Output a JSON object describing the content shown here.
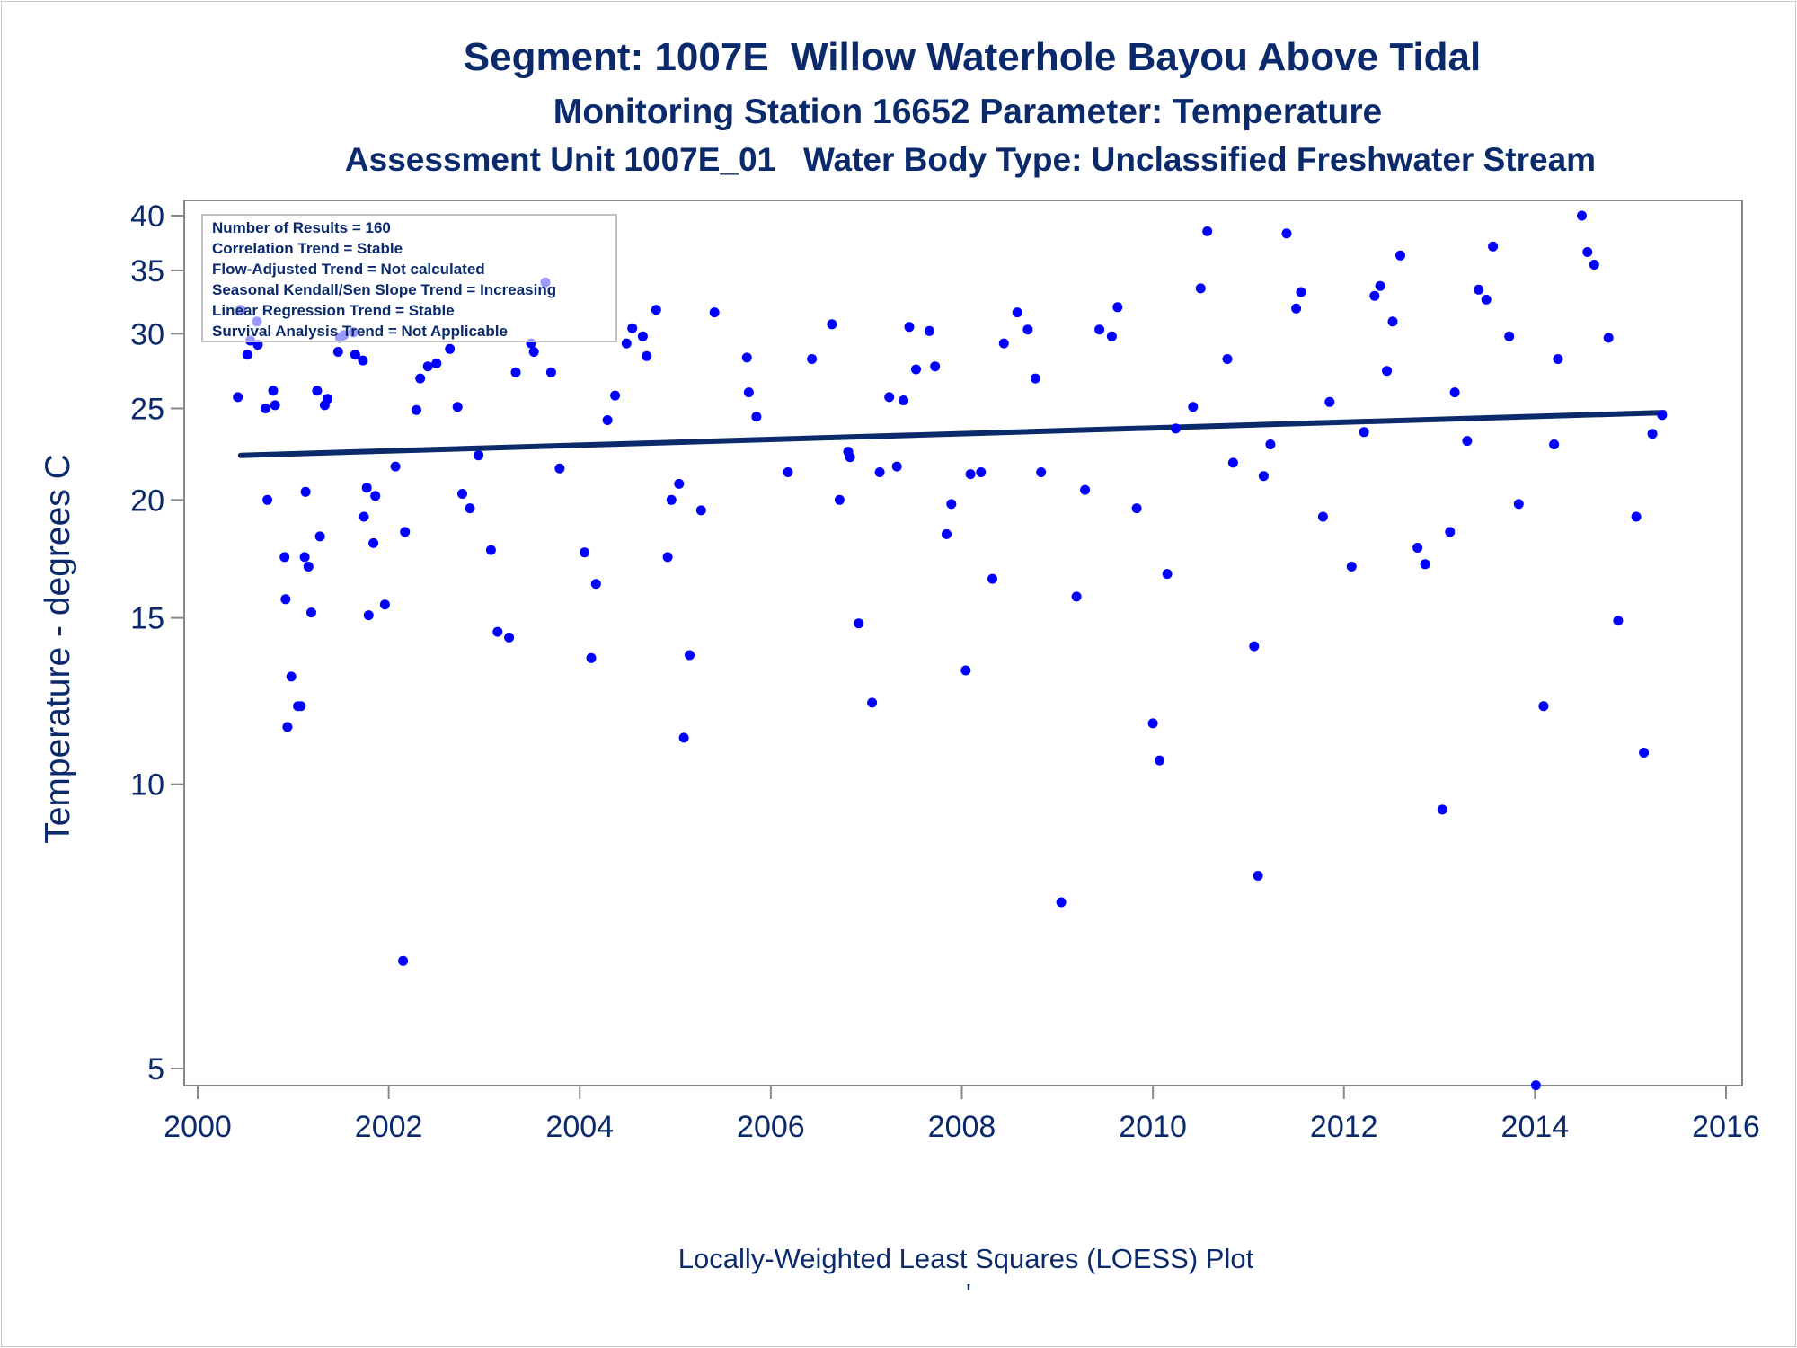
{
  "chart_data": {
    "type": "scatter",
    "title": "Segment: 1007E  Willow Waterhole Bayou Above Tidal",
    "subtitle": "Monitoring Station 16652 Parameter: Temperature",
    "subtitle2": "Assessment Unit 1007E_01   Water Body Type: Unclassified Freshwater Stream",
    "ylabel": "Temperature - degrees C",
    "footnote": "Locally-Weighted Least Squares (LOESS) Plot",
    "footnote_mark": "'",
    "x_scale": "linear",
    "y_scale": "log",
    "xlim": [
      2000,
      2016
    ],
    "ylim": [
      4.9,
      40.8
    ],
    "x_ticks": [
      2000,
      2002,
      2004,
      2006,
      2008,
      2010,
      2012,
      2014,
      2016
    ],
    "y_ticks": [
      5,
      10,
      15,
      20,
      25,
      30,
      35,
      40
    ],
    "grid": false,
    "legend_placement": "top-left",
    "stats_box": [
      "Number of Results = 160",
      "Correlation Trend = Stable",
      "Flow-Adjusted Trend = Not calculated",
      "Seasonal Kendall/Sen Slope Trend = Increasing",
      "Linear Regression Trend = Stable",
      "Survival Analysis Trend = Not Applicable"
    ],
    "colors": {
      "points": "#0000ff",
      "trend": "#0b2a6b",
      "text": "#0b2a6b",
      "axis": "#888888"
    },
    "trend_line": {
      "x": [
        2000.45,
        2015.35
      ],
      "y": [
        22.3,
        24.75
      ]
    },
    "points": [
      [
        2000.42,
        25.7
      ],
      [
        2000.45,
        31.8
      ],
      [
        2000.52,
        28.5
      ],
      [
        2000.55,
        29.5
      ],
      [
        2000.62,
        30.9
      ],
      [
        2000.63,
        29.2
      ],
      [
        2000.71,
        25.0
      ],
      [
        2000.73,
        20.0
      ],
      [
        2000.79,
        26.1
      ],
      [
        2000.81,
        25.2
      ],
      [
        2000.91,
        17.4
      ],
      [
        2000.92,
        15.7
      ],
      [
        2000.94,
        11.5
      ],
      [
        2000.98,
        13.0
      ],
      [
        2001.05,
        12.1
      ],
      [
        2001.08,
        12.1
      ],
      [
        2001.12,
        17.4
      ],
      [
        2001.13,
        20.4
      ],
      [
        2001.16,
        17.0
      ],
      [
        2001.19,
        15.2
      ],
      [
        2001.25,
        26.1
      ],
      [
        2001.28,
        18.3
      ],
      [
        2001.33,
        25.2
      ],
      [
        2001.36,
        25.6
      ],
      [
        2001.47,
        28.7
      ],
      [
        2001.49,
        29.7
      ],
      [
        2001.53,
        29.9
      ],
      [
        2001.63,
        30.1
      ],
      [
        2001.65,
        28.5
      ],
      [
        2001.73,
        28.1
      ],
      [
        2001.74,
        19.2
      ],
      [
        2001.77,
        20.6
      ],
      [
        2001.79,
        15.1
      ],
      [
        2001.84,
        18.0
      ],
      [
        2001.86,
        20.2
      ],
      [
        2001.96,
        15.5
      ],
      [
        2002.07,
        21.7
      ],
      [
        2002.15,
        6.5
      ],
      [
        2002.17,
        18.5
      ],
      [
        2002.29,
        24.9
      ],
      [
        2002.33,
        26.9
      ],
      [
        2002.41,
        27.7
      ],
      [
        2002.5,
        27.9
      ],
      [
        2002.64,
        28.9
      ],
      [
        2002.72,
        25.1
      ],
      [
        2002.77,
        20.3
      ],
      [
        2002.85,
        19.6
      ],
      [
        2002.94,
        22.3
      ],
      [
        2003.07,
        17.7
      ],
      [
        2003.14,
        14.5
      ],
      [
        2003.26,
        14.3
      ],
      [
        2003.33,
        27.3
      ],
      [
        2003.49,
        29.3
      ],
      [
        2003.52,
        28.7
      ],
      [
        2003.64,
        34.0
      ],
      [
        2003.7,
        27.3
      ],
      [
        2003.79,
        21.6
      ],
      [
        2004.05,
        17.6
      ],
      [
        2004.12,
        13.6
      ],
      [
        2004.17,
        16.3
      ],
      [
        2004.29,
        24.3
      ],
      [
        2004.37,
        25.8
      ],
      [
        2004.49,
        29.3
      ],
      [
        2004.55,
        30.4
      ],
      [
        2004.66,
        29.8
      ],
      [
        2004.7,
        28.4
      ],
      [
        2004.8,
        31.8
      ],
      [
        2004.92,
        17.4
      ],
      [
        2004.96,
        20.0
      ],
      [
        2005.04,
        20.8
      ],
      [
        2005.09,
        11.2
      ],
      [
        2005.15,
        13.7
      ],
      [
        2005.27,
        19.5
      ],
      [
        2005.41,
        31.6
      ],
      [
        2005.75,
        28.3
      ],
      [
        2005.77,
        26.0
      ],
      [
        2005.85,
        24.5
      ],
      [
        2006.18,
        21.4
      ],
      [
        2006.43,
        28.2
      ],
      [
        2006.64,
        30.7
      ],
      [
        2006.72,
        20.0
      ],
      [
        2006.81,
        22.5
      ],
      [
        2006.83,
        22.2
      ],
      [
        2006.92,
        14.8
      ],
      [
        2007.06,
        12.2
      ],
      [
        2007.14,
        21.4
      ],
      [
        2007.24,
        25.7
      ],
      [
        2007.32,
        21.7
      ],
      [
        2007.39,
        25.5
      ],
      [
        2007.45,
        30.5
      ],
      [
        2007.52,
        27.5
      ],
      [
        2007.66,
        30.2
      ],
      [
        2007.72,
        27.7
      ],
      [
        2007.84,
        18.4
      ],
      [
        2007.89,
        19.8
      ],
      [
        2008.04,
        13.2
      ],
      [
        2008.09,
        21.3
      ],
      [
        2008.2,
        21.4
      ],
      [
        2008.32,
        16.5
      ],
      [
        2008.44,
        29.3
      ],
      [
        2008.58,
        31.6
      ],
      [
        2008.69,
        30.3
      ],
      [
        2008.77,
        26.9
      ],
      [
        2008.83,
        21.4
      ],
      [
        2009.04,
        7.5
      ],
      [
        2009.2,
        15.8
      ],
      [
        2009.29,
        20.5
      ],
      [
        2009.44,
        30.3
      ],
      [
        2009.57,
        29.8
      ],
      [
        2009.63,
        32.0
      ],
      [
        2009.83,
        19.6
      ],
      [
        2010.0,
        11.6
      ],
      [
        2010.07,
        10.6
      ],
      [
        2010.15,
        16.7
      ],
      [
        2010.24,
        23.8
      ],
      [
        2010.42,
        25.1
      ],
      [
        2010.5,
        33.5
      ],
      [
        2010.57,
        38.5
      ],
      [
        2010.78,
        28.2
      ],
      [
        2010.84,
        21.9
      ],
      [
        2011.06,
        14.0
      ],
      [
        2011.1,
        8.0
      ],
      [
        2011.16,
        21.2
      ],
      [
        2011.23,
        22.9
      ],
      [
        2011.4,
        38.3
      ],
      [
        2011.5,
        31.9
      ],
      [
        2011.55,
        33.2
      ],
      [
        2011.78,
        19.2
      ],
      [
        2011.85,
        25.4
      ],
      [
        2012.08,
        17.0
      ],
      [
        2012.21,
        23.6
      ],
      [
        2012.32,
        32.9
      ],
      [
        2012.38,
        33.7
      ],
      [
        2012.45,
        27.4
      ],
      [
        2012.51,
        30.9
      ],
      [
        2012.59,
        36.3
      ],
      [
        2012.77,
        17.8
      ],
      [
        2012.85,
        17.1
      ],
      [
        2013.03,
        9.4
      ],
      [
        2013.11,
        18.5
      ],
      [
        2013.16,
        26.0
      ],
      [
        2013.29,
        23.1
      ],
      [
        2013.41,
        33.4
      ],
      [
        2013.49,
        32.6
      ],
      [
        2013.56,
        37.1
      ],
      [
        2013.73,
        29.8
      ],
      [
        2013.83,
        19.8
      ],
      [
        2014.01,
        4.8
      ],
      [
        2014.09,
        12.1
      ],
      [
        2014.2,
        22.9
      ],
      [
        2014.24,
        28.2
      ],
      [
        2014.49,
        40.0
      ],
      [
        2014.55,
        36.6
      ],
      [
        2014.62,
        35.5
      ],
      [
        2014.77,
        29.7
      ],
      [
        2014.87,
        14.9
      ],
      [
        2015.06,
        19.2
      ],
      [
        2015.14,
        10.8
      ],
      [
        2015.23,
        23.5
      ],
      [
        2015.33,
        24.6
      ]
    ]
  }
}
